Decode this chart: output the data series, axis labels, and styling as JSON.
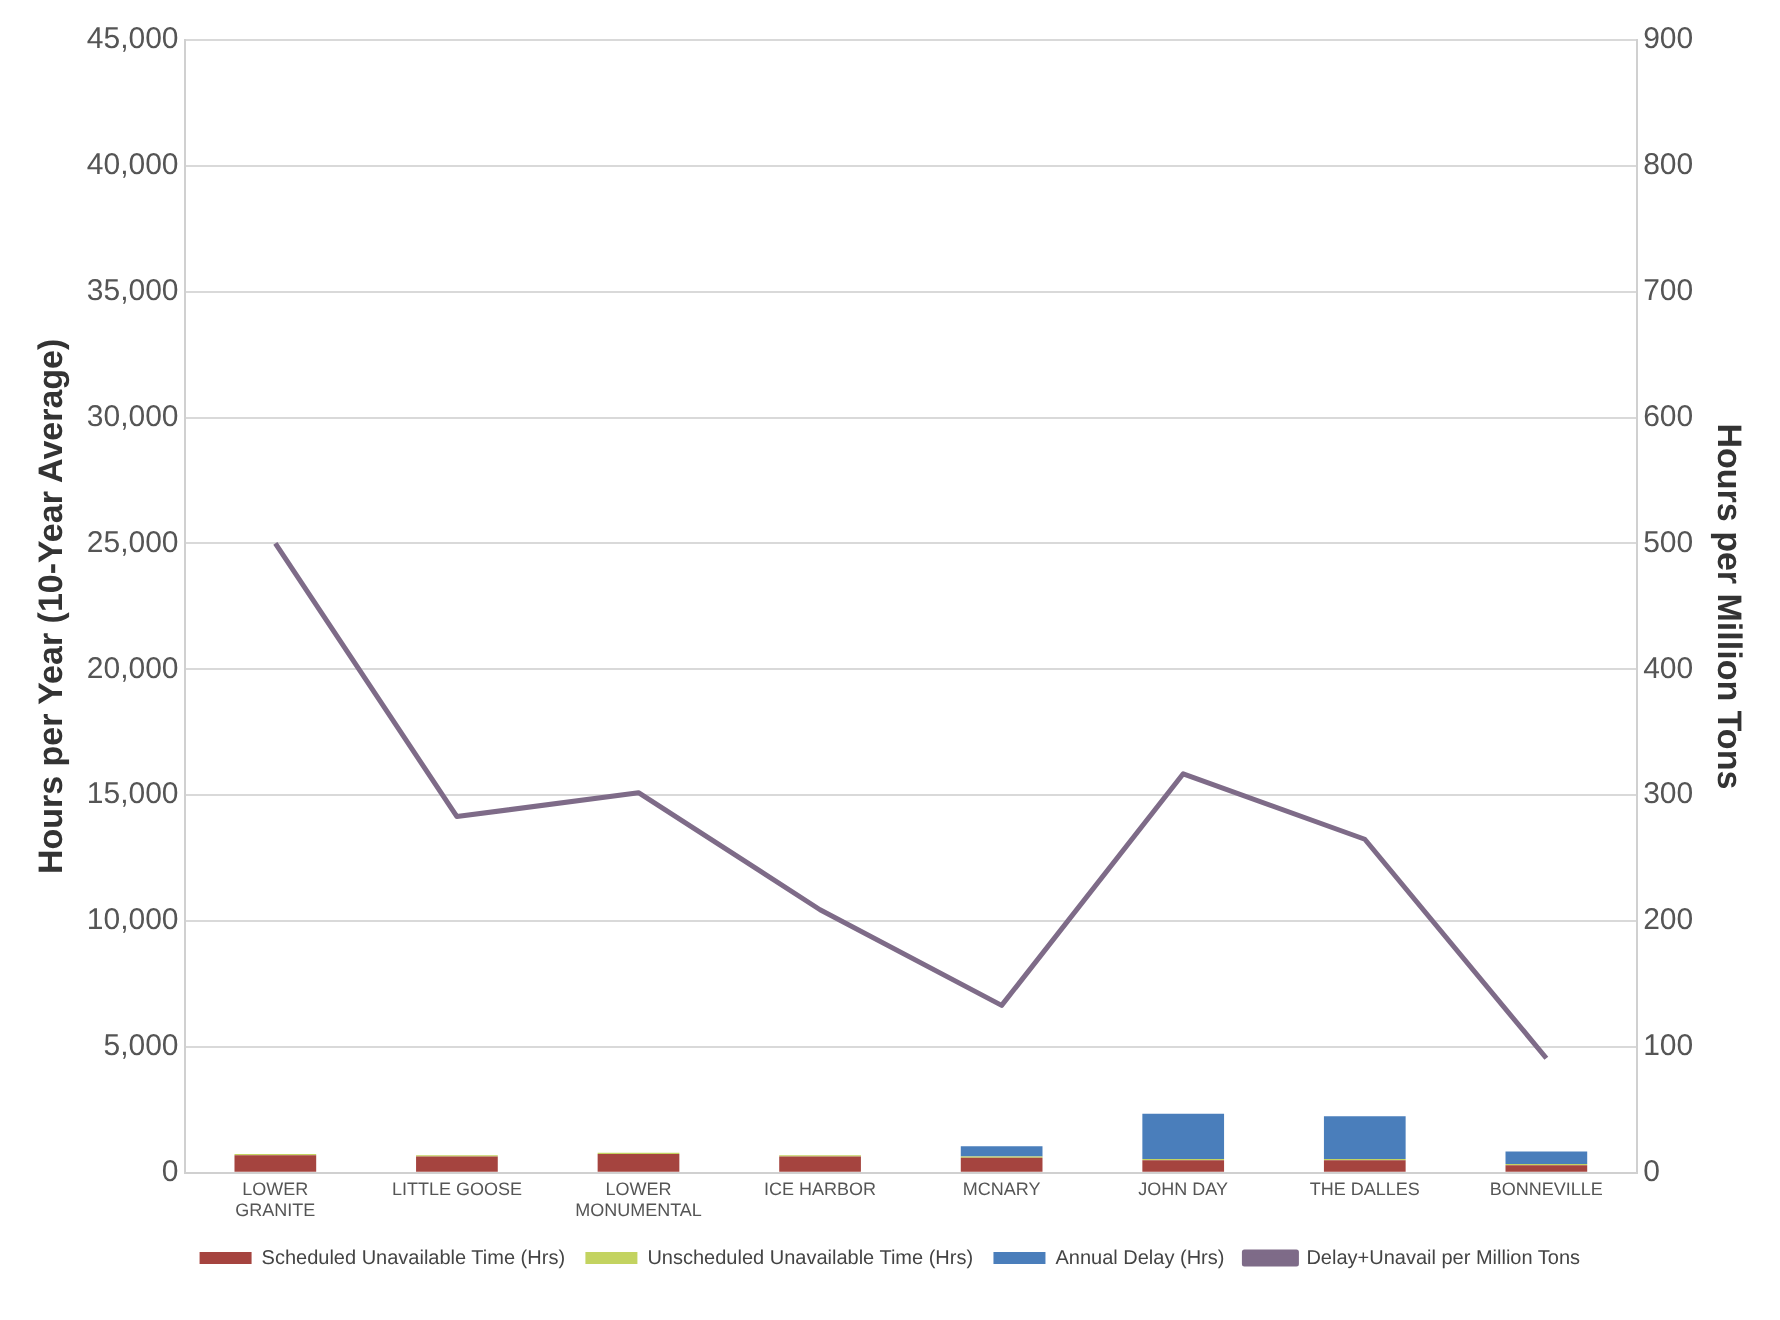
{
  "chart_data": {
    "type": "bar",
    "stacked": true,
    "categories": [
      "LOWER GRANITE",
      "LITTLE GOOSE",
      "LOWER MONUMENTAL",
      "ICE HARBOR",
      "MCNARY",
      "JOHN DAY",
      "THE DALLES",
      "BONNEVILLE"
    ],
    "series": [
      {
        "name": "Scheduled Unavailable Time (Hrs)",
        "color": "#a5443f",
        "values": [
          700,
          650,
          750,
          650,
          600,
          500,
          500,
          300
        ]
      },
      {
        "name": "Unscheduled Unavailable Time (Hrs)",
        "color": "#c3d360",
        "values": [
          50,
          50,
          50,
          50,
          50,
          50,
          50,
          50
        ]
      },
      {
        "name": "Annual Delay (Hrs)",
        "color": "#4a7ebb",
        "values": [
          0,
          0,
          0,
          0,
          400,
          1800,
          1700,
          500
        ]
      },
      {
        "name": "Delay+Unavail per Million Tons",
        "type": "line",
        "axis": "y2",
        "color": "#7e6b88",
        "values": [
          500,
          283,
          302,
          209,
          133,
          317,
          265,
          91
        ]
      }
    ],
    "ylabel": "Hours per Year (10-Year Average)",
    "y2label": "Hours per Million Tons",
    "ylim": [
      0,
      45000
    ],
    "yticks": [
      0,
      {
        "value": 5000,
        "label": "5,000"
      },
      {
        "value": 10000,
        "label": "10,000"
      },
      {
        "value": 15000,
        "label": "15,000"
      },
      {
        "value": 20000,
        "label": "20,000"
      },
      {
        "value": 25000,
        "label": "25,000"
      },
      {
        "value": 30000,
        "label": "30,000"
      },
      {
        "value": 35000,
        "label": "35,000"
      },
      {
        "value": 40000,
        "label": "40,000"
      },
      {
        "value": 45000,
        "label": "45,000"
      }
    ],
    "y2lim": [
      0,
      900
    ],
    "y2ticks": [
      0,
      100,
      200,
      300,
      400,
      500,
      600,
      700,
      800,
      900
    ],
    "grid": "y",
    "legend": "bottom",
    "marker": "none",
    "line_style": "solid"
  }
}
